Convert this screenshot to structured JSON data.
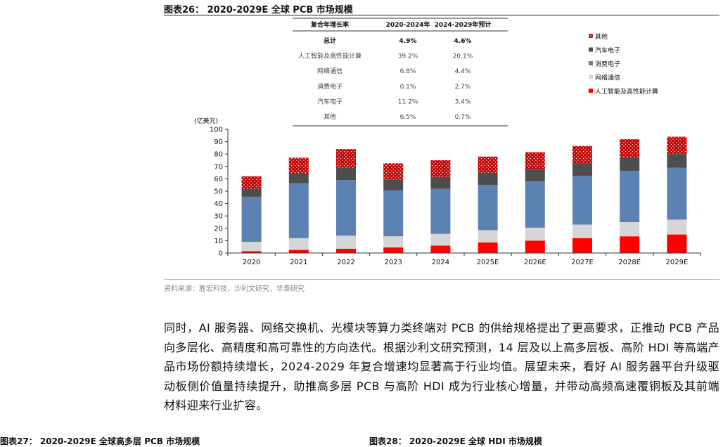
{
  "figure_title": "图表26： 2020-2029E 全球 PCB 市场规模",
  "source": "资料来源：胜宏科技，沙利文研究，华泰研究",
  "paragraph": "同时，AI 服务器、网络交换机、光模块等算力类终端对 PCB 的供给规格提出了更高要求，正推动 PCB 产品向多层化、高精度和高可靠性的方向迭代。根据沙利文研究预测，14 层及以上高多层板、高阶 HDI 等高端产品市场份额持续增长，2024-2029 年复合增速均显著高于行业均值。展望未来，看好 AI 服务器平台升级驱动板侧价值量持续提升，助推高多层 PCB 与高阶 HDI 成为行业核心增量，并带动高频高速覆铜板及其前端材料迎来行业扩容。",
  "next_captions": {
    "left": "图表27： 2020-2029E 全球高多层 PCB 市场规模",
    "right": "图表28： 2020-2029E 全球 HDI 市场规模"
  },
  "colors": {
    "ai": "#ff0000",
    "network": "#d6d6d6",
    "consumer": "#5b82b3",
    "auto": "#4d4d4d",
    "other": "#c00000",
    "axis": "#333333"
  },
  "chart_data": {
    "type": "bar",
    "stacked": true,
    "unit_label": "(亿美元)",
    "ylim": [
      0,
      100
    ],
    "yticks": [
      0,
      10,
      20,
      30,
      40,
      50,
      60,
      70,
      80,
      90,
      100
    ],
    "categories": [
      "2020",
      "2021",
      "2022",
      "2023",
      "2024",
      "2025E",
      "2026E",
      "2027E",
      "2028E",
      "2029E"
    ],
    "series": [
      {
        "name": "人工智能及高性能计算",
        "key": "ai",
        "values": [
          1.5,
          2.5,
          3.5,
          4.5,
          6.0,
          8.5,
          10.0,
          12.0,
          13.5,
          15.0
        ]
      },
      {
        "name": "网络通信",
        "key": "network",
        "values": [
          7.5,
          9.5,
          10.5,
          9.0,
          9.5,
          10.0,
          10.5,
          11.0,
          11.5,
          12.0
        ]
      },
      {
        "name": "消费电子",
        "key": "consumer",
        "values": [
          36.5,
          44.5,
          45.0,
          37.0,
          36.5,
          36.5,
          37.5,
          39.5,
          41.5,
          42.0
        ]
      },
      {
        "name": "汽车电子",
        "key": "auto",
        "values": [
          6.5,
          8.0,
          10.0,
          9.0,
          9.5,
          10.0,
          10.0,
          10.0,
          11.0,
          11.0
        ]
      },
      {
        "name": "其他",
        "key": "other",
        "values": [
          10.0,
          12.5,
          15.0,
          13.0,
          13.5,
          13.0,
          13.5,
          14.0,
          14.5,
          14.0
        ]
      }
    ],
    "legend": [
      "其他",
      "汽车电子",
      "消费电子",
      "网络通信",
      "人工智能及高性能计算"
    ],
    "legend_keys": [
      "other",
      "auto",
      "consumer",
      "network",
      "ai"
    ],
    "legend_position": "top-right",
    "grid": false,
    "cagr_table": {
      "headers": [
        "复合年增长率",
        "2020-2024年",
        "2024-2029年预计"
      ],
      "rows": [
        [
          "总计",
          "4.9%",
          "4.6%"
        ],
        [
          "人工智能及高性能计算",
          "39.2%",
          "20.1%"
        ],
        [
          "网络通信",
          "6.8%",
          "4.4%"
        ],
        [
          "消费电子",
          "0.1%",
          "2.7%"
        ],
        [
          "汽车电子",
          "11.2%",
          "3.4%"
        ],
        [
          "其他",
          "6.5%",
          "0.7%"
        ]
      ]
    }
  }
}
